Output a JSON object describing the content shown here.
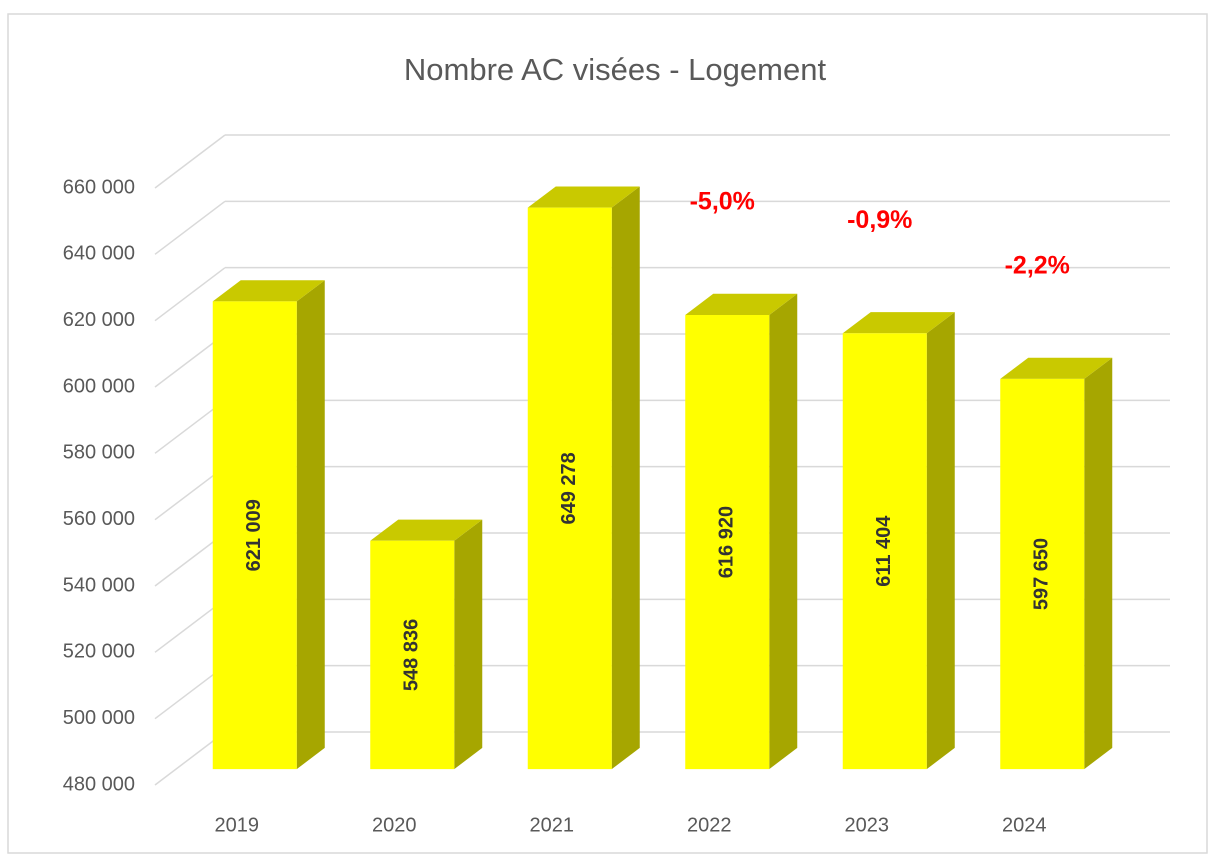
{
  "chart_data": {
    "type": "bar3d",
    "title": "Nombre AC visées - Logement",
    "categories": [
      "2019",
      "2020",
      "2021",
      "2022",
      "2023",
      "2024"
    ],
    "values": [
      621009,
      548836,
      649278,
      616920,
      611404,
      597650
    ],
    "value_labels": [
      "621 009",
      "548 836",
      "649 278",
      "616 920",
      "611 404",
      "597 650"
    ],
    "colors": {
      "front": "#ffff00",
      "top": "#c9c900",
      "side": "#a6a600"
    },
    "ylim": [
      480000,
      660000
    ],
    "yticks": [
      {
        "value": 480000,
        "label": "480 000"
      },
      {
        "value": 500000,
        "label": "500 000"
      },
      {
        "value": 520000,
        "label": "520 000"
      },
      {
        "value": 540000,
        "label": "540 000"
      },
      {
        "value": 560000,
        "label": "560 000"
      },
      {
        "value": 580000,
        "label": "580 000"
      },
      {
        "value": 600000,
        "label": "600 000"
      },
      {
        "value": 620000,
        "label": "620 000"
      },
      {
        "value": 640000,
        "label": "640 000"
      },
      {
        "value": 660000,
        "label": "660 000"
      }
    ],
    "grid": true,
    "annotations": [
      {
        "category": "2022",
        "text": "-5,0%"
      },
      {
        "category": "2023",
        "text": "-0,9%"
      },
      {
        "category": "2024",
        "text": "-2,2%"
      }
    ],
    "annotation_color": "#ff0000"
  }
}
